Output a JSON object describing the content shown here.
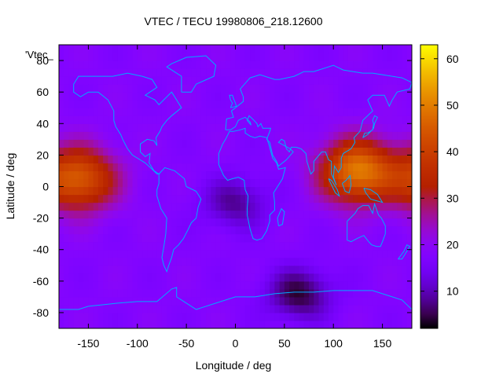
{
  "chart_data": {
    "type": "heatmap",
    "title": "VTEC / TECU 19980806_218.12600",
    "xlabel": "Longitude / deg",
    "ylabel": "Latitude / deg",
    "legend_key": "'Vtec_",
    "xlim": [
      -180,
      180
    ],
    "ylim": [
      -90,
      90
    ],
    "x_ticks": [
      "-150",
      "-100",
      "-50",
      "0",
      "50",
      "100",
      "150"
    ],
    "x_tick_values": [
      -150,
      -100,
      -50,
      0,
      50,
      100,
      150
    ],
    "y_ticks": [
      "-80",
      "-60",
      "-40",
      "-20",
      "0",
      "20",
      "40",
      "60",
      "80"
    ],
    "y_tick_values": [
      -80,
      -60,
      -40,
      -20,
      0,
      20,
      40,
      60,
      80
    ],
    "colorbar": {
      "range": [
        2,
        63
      ],
      "ticks": [
        "10",
        "20",
        "30",
        "40",
        "50",
        "60"
      ],
      "tick_values": [
        10,
        20,
        30,
        40,
        50,
        60
      ],
      "palette": "black-purple-red-orange-yellow"
    },
    "features": [
      {
        "name": "Pacific equatorial maximum",
        "lon": -160,
        "lat": 5,
        "value": 45
      },
      {
        "name": "East Asia / western Pacific maximum",
        "lon": 125,
        "lat": 10,
        "value": 50
      },
      {
        "name": "Africa / Atlantic minimum",
        "lon": 0,
        "lat": -10,
        "value": 8
      },
      {
        "name": "Antarctic minimum",
        "lon": 65,
        "lat": -68,
        "value": 4
      },
      {
        "name": "Background level",
        "lon": 0,
        "lat": 40,
        "value": 18
      }
    ],
    "overlay": "coastlines",
    "overlay_color": "#00aaff"
  }
}
